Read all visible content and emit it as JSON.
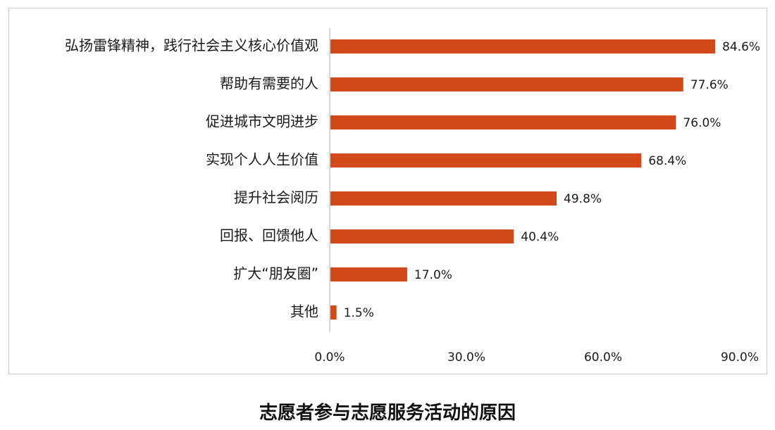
{
  "chart_data": {
    "type": "bar",
    "orientation": "horizontal",
    "title": "志愿者参与志愿服务活动的原因",
    "categories": [
      "弘扬雷锋精神，践行社会主义核心价值观",
      "帮助有需要的人",
      "促进城市文明进步",
      "实现个人人生价值",
      "提升社会阅历",
      "回报、回馈他人",
      "扩大“朋友圈”",
      "其他"
    ],
    "values": [
      84.6,
      77.6,
      76.0,
      68.4,
      49.8,
      40.4,
      17.0,
      1.5
    ],
    "value_labels": [
      "84.6%",
      "77.6%",
      "76.0%",
      "68.4%",
      "49.8%",
      "40.4%",
      "17.0%",
      "1.5%"
    ],
    "xlim": [
      0,
      90
    ],
    "x_ticks": [
      0,
      30,
      60,
      90
    ],
    "x_tick_labels": [
      "0.0%",
      "30.0%",
      "60.0%",
      "90.0%"
    ],
    "bar_color": "#d24a1a",
    "axis_color": "#c8c8c8",
    "grid": false,
    "legend": "none"
  }
}
